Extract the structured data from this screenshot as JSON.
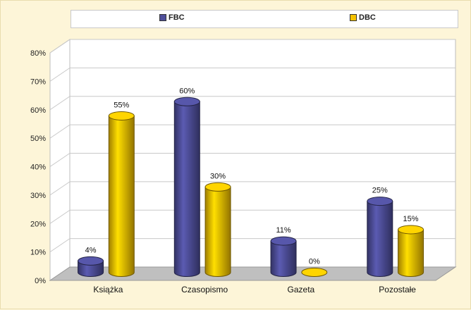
{
  "chart_data": {
    "type": "bar",
    "categories": [
      "Książka",
      "Czasopismo",
      "Gazeta",
      "Pozostałe"
    ],
    "series": [
      {
        "name": "FBC",
        "values": [
          4,
          60,
          11,
          25
        ],
        "labels": [
          "4%",
          "60%",
          "11%",
          "25%"
        ],
        "color": "#4f4f9b"
      },
      {
        "name": "DBC",
        "values": [
          55,
          30,
          0,
          15
        ],
        "labels": [
          "55%",
          "30%",
          "0%",
          "15%"
        ],
        "color": "#f5c200"
      }
    ],
    "yticks": [
      "0%",
      "10%",
      "20%",
      "30%",
      "40%",
      "50%",
      "60%",
      "70%",
      "80%"
    ],
    "ylim": [
      0,
      80
    ],
    "grid": true,
    "legend_position": "top",
    "style": "3d-cylinder"
  }
}
